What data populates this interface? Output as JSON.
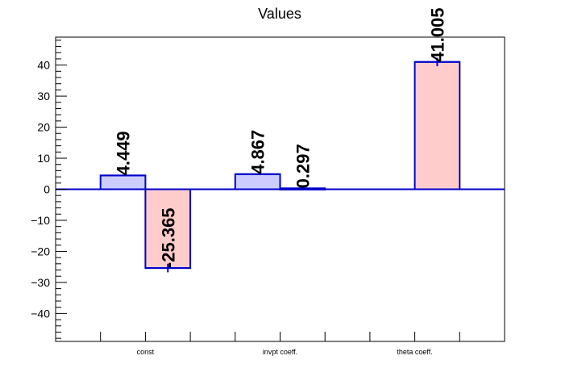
{
  "chart_data": {
    "type": "bar",
    "title": "Values",
    "xlabel": "",
    "ylabel": "",
    "categories": [
      "const",
      "invpt coeff.",
      "theta coeff."
    ],
    "ylim": [
      -49,
      49
    ],
    "y_ticks": [
      -40,
      -30,
      -20,
      -10,
      0,
      10,
      20,
      30,
      40
    ],
    "y_tick_labels": [
      "−40",
      "−30",
      "−20",
      "−10",
      "0",
      "10",
      "20",
      "30",
      "40"
    ],
    "grid": false,
    "legend": "none",
    "bars": [
      {
        "category_index": 0,
        "slot": 0,
        "value": 4.449,
        "label": "4.449",
        "fill": "#ccccff",
        "error": 0
      },
      {
        "category_index": 0,
        "slot": 1,
        "value": -25.365,
        "label": "-25.365",
        "fill": "#ffcccc",
        "error": 0.6
      },
      {
        "category_index": 1,
        "slot": 0,
        "value": 4.867,
        "label": "4.867",
        "fill": "#ccccff",
        "error": 0
      },
      {
        "category_index": 1,
        "slot": 1,
        "value": 0.297,
        "label": "0.297",
        "fill": "#ccccff",
        "error": 0
      },
      {
        "category_index": 2,
        "slot": 1,
        "value": 41.005,
        "label": "41.005",
        "fill": "#ffcccc",
        "error": 0.6
      }
    ],
    "colors": {
      "outline": "#0000cc",
      "axis": "#000000",
      "label": "#000000"
    }
  }
}
